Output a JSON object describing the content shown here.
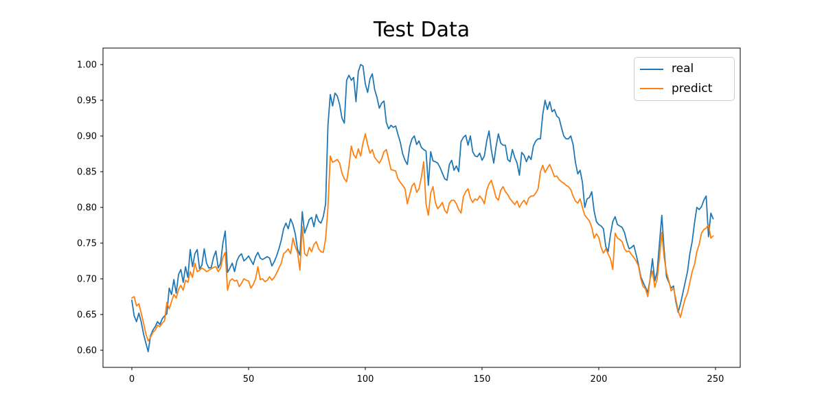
{
  "chart_data": {
    "type": "line",
    "title": "Test Data",
    "xlabel": "",
    "ylabel": "",
    "grid": false,
    "xlim": [
      -12.35,
      260.6
    ],
    "ylim": [
      0.576,
      1.0231
    ],
    "x_ticks": [
      0,
      50,
      100,
      150,
      200,
      250
    ],
    "x_tick_labels": [
      "0",
      "50",
      "100",
      "150",
      "200",
      "250"
    ],
    "y_ticks": [
      0.6,
      0.65,
      0.7,
      0.75,
      0.8,
      0.85,
      0.9,
      0.95,
      1.0
    ],
    "y_tick_labels": [
      "0.60",
      "0.65",
      "0.70",
      "0.75",
      "0.80",
      "0.85",
      "0.90",
      "0.95",
      "1.00"
    ],
    "x_start": 0,
    "x_step": 1,
    "n_points": 250,
    "legend": {
      "position": "upper right",
      "entries": [
        "real",
        "predict"
      ]
    },
    "series": [
      {
        "name": "real",
        "color": "#1f77b4",
        "values": [
          0.67,
          0.648,
          0.64,
          0.652,
          0.64,
          0.623,
          0.61,
          0.598,
          0.62,
          0.628,
          0.633,
          0.64,
          0.636,
          0.644,
          0.648,
          0.651,
          0.687,
          0.678,
          0.699,
          0.68,
          0.706,
          0.713,
          0.695,
          0.717,
          0.702,
          0.741,
          0.717,
          0.735,
          0.741,
          0.714,
          0.719,
          0.742,
          0.722,
          0.715,
          0.716,
          0.73,
          0.739,
          0.715,
          0.722,
          0.75,
          0.767,
          0.709,
          0.715,
          0.722,
          0.71,
          0.725,
          0.732,
          0.735,
          0.725,
          0.728,
          0.732,
          0.726,
          0.72,
          0.731,
          0.737,
          0.729,
          0.727,
          0.729,
          0.731,
          0.729,
          0.718,
          0.724,
          0.732,
          0.742,
          0.754,
          0.77,
          0.778,
          0.77,
          0.784,
          0.776,
          0.763,
          0.741,
          0.733,
          0.794,
          0.764,
          0.773,
          0.783,
          0.786,
          0.773,
          0.79,
          0.781,
          0.778,
          0.787,
          0.805,
          0.915,
          0.958,
          0.942,
          0.96,
          0.956,
          0.944,
          0.925,
          0.918,
          0.978,
          0.985,
          0.978,
          0.982,
          0.948,
          0.99,
          1.0,
          0.998,
          0.973,
          0.961,
          0.98,
          0.987,
          0.965,
          0.954,
          0.939,
          0.946,
          0.949,
          0.919,
          0.91,
          0.915,
          0.912,
          0.914,
          0.902,
          0.891,
          0.875,
          0.866,
          0.86,
          0.885,
          0.896,
          0.9,
          0.888,
          0.893,
          0.884,
          0.881,
          0.879,
          0.831,
          0.878,
          0.865,
          0.864,
          0.862,
          0.856,
          0.848,
          0.84,
          0.838,
          0.86,
          0.866,
          0.852,
          0.858,
          0.85,
          0.892,
          0.898,
          0.901,
          0.887,
          0.9,
          0.878,
          0.872,
          0.871,
          0.876,
          0.866,
          0.872,
          0.893,
          0.907,
          0.88,
          0.862,
          0.885,
          0.903,
          0.89,
          0.887,
          0.887,
          0.867,
          0.864,
          0.881,
          0.87,
          0.862,
          0.845,
          0.877,
          0.873,
          0.864,
          0.872,
          0.867,
          0.886,
          0.893,
          0.896,
          0.896,
          0.93,
          0.95,
          0.937,
          0.948,
          0.934,
          0.937,
          0.928,
          0.925,
          0.912,
          0.9,
          0.896,
          0.896,
          0.9,
          0.888,
          0.863,
          0.847,
          0.852,
          0.835,
          0.8,
          0.812,
          0.814,
          0.822,
          0.795,
          0.78,
          0.776,
          0.774,
          0.77,
          0.745,
          0.738,
          0.762,
          0.78,
          0.787,
          0.776,
          0.774,
          0.772,
          0.765,
          0.752,
          0.742,
          0.744,
          0.747,
          0.734,
          0.72,
          0.703,
          0.695,
          0.688,
          0.681,
          0.7,
          0.728,
          0.697,
          0.71,
          0.75,
          0.789,
          0.74,
          0.703,
          0.695,
          0.687,
          0.69,
          0.668,
          0.653,
          0.665,
          0.68,
          0.695,
          0.71,
          0.735,
          0.752,
          0.778,
          0.8,
          0.797,
          0.801,
          0.81,
          0.816,
          0.759,
          0.792,
          0.784
        ]
      },
      {
        "name": "predict",
        "color": "#ff7f0e",
        "values": [
          0.673,
          0.675,
          0.662,
          0.665,
          0.652,
          0.638,
          0.623,
          0.613,
          0.618,
          0.625,
          0.628,
          0.635,
          0.633,
          0.638,
          0.641,
          0.667,
          0.658,
          0.668,
          0.678,
          0.673,
          0.685,
          0.691,
          0.684,
          0.698,
          0.695,
          0.71,
          0.702,
          0.722,
          0.71,
          0.712,
          0.715,
          0.713,
          0.71,
          0.712,
          0.714,
          0.716,
          0.717,
          0.71,
          0.715,
          0.73,
          0.737,
          0.684,
          0.697,
          0.7,
          0.697,
          0.698,
          0.689,
          0.694,
          0.7,
          0.698,
          0.697,
          0.687,
          0.692,
          0.7,
          0.717,
          0.699,
          0.7,
          0.696,
          0.698,
          0.703,
          0.698,
          0.702,
          0.708,
          0.715,
          0.722,
          0.735,
          0.738,
          0.742,
          0.735,
          0.757,
          0.745,
          0.737,
          0.712,
          0.773,
          0.735,
          0.732,
          0.744,
          0.738,
          0.748,
          0.752,
          0.742,
          0.738,
          0.737,
          0.756,
          0.8,
          0.872,
          0.863,
          0.865,
          0.867,
          0.862,
          0.848,
          0.84,
          0.836,
          0.857,
          0.886,
          0.874,
          0.869,
          0.882,
          0.872,
          0.89,
          0.903,
          0.888,
          0.876,
          0.881,
          0.87,
          0.866,
          0.862,
          0.868,
          0.878,
          0.881,
          0.867,
          0.853,
          0.852,
          0.851,
          0.84,
          0.835,
          0.831,
          0.826,
          0.805,
          0.818,
          0.83,
          0.834,
          0.821,
          0.826,
          0.842,
          0.864,
          0.805,
          0.789,
          0.82,
          0.829,
          0.807,
          0.798,
          0.802,
          0.807,
          0.796,
          0.792,
          0.806,
          0.81,
          0.81,
          0.805,
          0.797,
          0.792,
          0.815,
          0.822,
          0.826,
          0.813,
          0.807,
          0.812,
          0.81,
          0.816,
          0.812,
          0.805,
          0.824,
          0.833,
          0.838,
          0.826,
          0.814,
          0.81,
          0.824,
          0.829,
          0.822,
          0.818,
          0.812,
          0.808,
          0.804,
          0.809,
          0.8,
          0.806,
          0.81,
          0.804,
          0.813,
          0.816,
          0.816,
          0.82,
          0.826,
          0.85,
          0.859,
          0.849,
          0.855,
          0.86,
          0.852,
          0.843,
          0.844,
          0.839,
          0.836,
          0.834,
          0.831,
          0.829,
          0.825,
          0.816,
          0.809,
          0.806,
          0.812,
          0.8,
          0.789,
          0.785,
          0.781,
          0.772,
          0.757,
          0.763,
          0.758,
          0.744,
          0.736,
          0.742,
          0.735,
          0.728,
          0.713,
          0.764,
          0.757,
          0.755,
          0.752,
          0.742,
          0.738,
          0.739,
          0.734,
          0.73,
          0.725,
          0.718,
          0.7,
          0.689,
          0.686,
          0.675,
          0.7,
          0.711,
          0.688,
          0.7,
          0.73,
          0.765,
          0.73,
          0.709,
          0.697,
          0.683,
          0.687,
          0.672,
          0.655,
          0.646,
          0.66,
          0.672,
          0.68,
          0.695,
          0.71,
          0.72,
          0.738,
          0.748,
          0.764,
          0.769,
          0.771,
          0.776,
          0.757,
          0.76
        ]
      }
    ]
  },
  "legend": {
    "items": [
      {
        "label": "real",
        "color": "#1f77b4"
      },
      {
        "label": "predict",
        "color": "#ff7f0e"
      }
    ]
  }
}
